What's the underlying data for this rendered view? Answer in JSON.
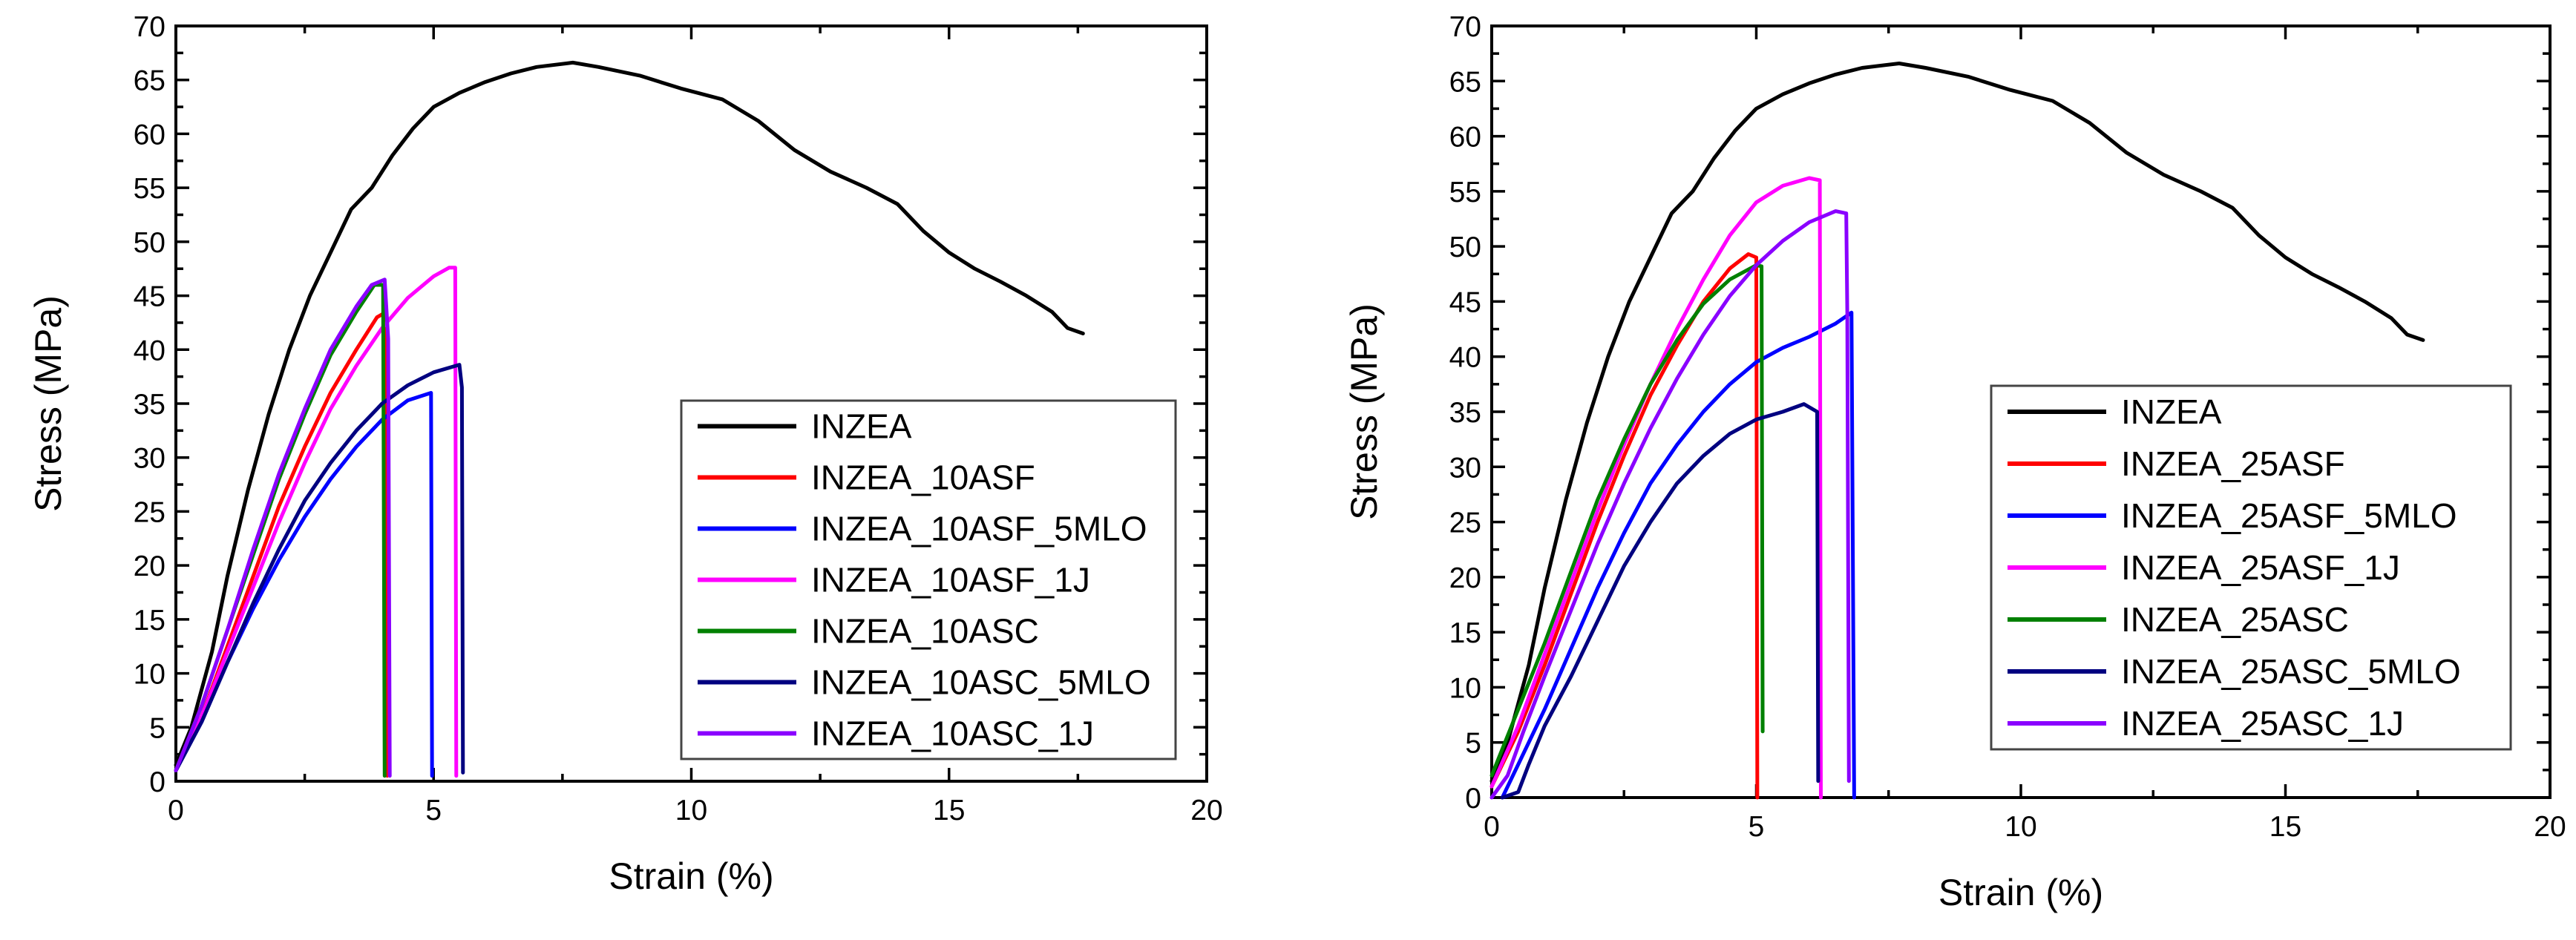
{
  "chart_data": [
    {
      "type": "line",
      "xlabel": "Strain (%)",
      "ylabel": "Stress (MPa)",
      "xlim": [
        0,
        20
      ],
      "ylim": [
        0,
        70
      ],
      "xticks": [
        0,
        5,
        10,
        15,
        20
      ],
      "yticks": [
        0,
        5,
        10,
        15,
        20,
        25,
        30,
        35,
        40,
        45,
        50,
        55,
        60,
        65,
        70
      ],
      "grid": false,
      "legend_position": "lower-right",
      "series": [
        {
          "name": "INZEA",
          "color": "#000000",
          "points": [
            [
              0,
              1.5
            ],
            [
              0.3,
              5
            ],
            [
              0.7,
              12
            ],
            [
              1,
              19
            ],
            [
              1.4,
              27
            ],
            [
              1.8,
              34
            ],
            [
              2.2,
              40
            ],
            [
              2.6,
              45
            ],
            [
              3,
              49
            ],
            [
              3.4,
              53
            ],
            [
              3.8,
              55
            ],
            [
              4.2,
              58
            ],
            [
              4.6,
              60.5
            ],
            [
              5,
              62.5
            ],
            [
              5.5,
              63.8
            ],
            [
              6,
              64.8
            ],
            [
              6.5,
              65.6
            ],
            [
              7,
              66.2
            ],
            [
              7.7,
              66.6
            ],
            [
              8.2,
              66.2
            ],
            [
              9,
              65.4
            ],
            [
              9.8,
              64.2
            ],
            [
              10.6,
              63.2
            ],
            [
              11.3,
              61.2
            ],
            [
              12,
              58.5
            ],
            [
              12.7,
              56.5
            ],
            [
              13.4,
              55
            ],
            [
              14,
              53.5
            ],
            [
              14.5,
              51
            ],
            [
              15,
              49
            ],
            [
              15.5,
              47.5
            ],
            [
              16,
              46.3
            ],
            [
              16.5,
              45
            ],
            [
              17,
              43.5
            ],
            [
              17.3,
              42
            ],
            [
              17.6,
              41.5
            ]
          ]
        },
        {
          "name": "INZEA_10ASF",
          "color": "#ff0000",
          "points": [
            [
              0,
              1
            ],
            [
              0.5,
              6
            ],
            [
              1,
              12.5
            ],
            [
              1.5,
              19
            ],
            [
              2,
              25.5
            ],
            [
              2.5,
              31
            ],
            [
              3,
              36
            ],
            [
              3.5,
              40
            ],
            [
              3.9,
              43
            ],
            [
              4.08,
              43.5
            ],
            [
              4.1,
              0.5
            ]
          ]
        },
        {
          "name": "INZEA_10ASF_5MLO",
          "color": "#0000ff",
          "points": [
            [
              0,
              1
            ],
            [
              0.5,
              5.5
            ],
            [
              1,
              11
            ],
            [
              1.5,
              16
            ],
            [
              2,
              20.5
            ],
            [
              2.5,
              24.5
            ],
            [
              3,
              28
            ],
            [
              3.5,
              31
            ],
            [
              4,
              33.5
            ],
            [
              4.5,
              35.3
            ],
            [
              4.95,
              36
            ],
            [
              4.97,
              0.5
            ]
          ]
        },
        {
          "name": "INZEA_10ASF_1J",
          "color": "#ff00ff",
          "points": [
            [
              0,
              1
            ],
            [
              0.5,
              6
            ],
            [
              1,
              12
            ],
            [
              1.5,
              18
            ],
            [
              2,
              24
            ],
            [
              2.5,
              29.5
            ],
            [
              3,
              34.5
            ],
            [
              3.5,
              38.5
            ],
            [
              4,
              42
            ],
            [
              4.5,
              44.8
            ],
            [
              5,
              46.8
            ],
            [
              5.3,
              47.6
            ],
            [
              5.42,
              47.6
            ],
            [
              5.44,
              0.5
            ]
          ]
        },
        {
          "name": "INZEA_10ASC",
          "color": "#008000",
          "points": [
            [
              0,
              1
            ],
            [
              0.5,
              7
            ],
            [
              1,
              14
            ],
            [
              1.5,
              21
            ],
            [
              2,
              28
            ],
            [
              2.5,
              34
            ],
            [
              3,
              39.5
            ],
            [
              3.5,
              43.5
            ],
            [
              3.85,
              46
            ],
            [
              4.02,
              46
            ],
            [
              4.05,
              0.5
            ]
          ]
        },
        {
          "name": "INZEA_10ASC_5MLO",
          "color": "#000080",
          "points": [
            [
              0,
              1
            ],
            [
              0.5,
              5.5
            ],
            [
              1,
              11
            ],
            [
              1.5,
              16.5
            ],
            [
              2,
              21.5
            ],
            [
              2.5,
              26
            ],
            [
              3,
              29.5
            ],
            [
              3.5,
              32.5
            ],
            [
              4,
              35
            ],
            [
              4.5,
              36.7
            ],
            [
              5,
              37.9
            ],
            [
              5.5,
              38.6
            ],
            [
              5.55,
              36.5
            ],
            [
              5.57,
              0.8
            ]
          ]
        },
        {
          "name": "INZEA_10ASC_1J",
          "color": "#8a00ff",
          "points": [
            [
              0,
              1
            ],
            [
              0.5,
              7
            ],
            [
              1,
              14
            ],
            [
              1.5,
              21.5
            ],
            [
              2,
              28.5
            ],
            [
              2.5,
              34.5
            ],
            [
              3,
              40
            ],
            [
              3.5,
              44
            ],
            [
              3.8,
              46
            ],
            [
              4.05,
              46.5
            ],
            [
              4.12,
              41
            ],
            [
              4.15,
              0.5
            ]
          ]
        }
      ]
    },
    {
      "type": "line",
      "xlabel": "Strain (%)",
      "ylabel": "Stress (MPa)",
      "xlim": [
        0,
        20
      ],
      "ylim": [
        0,
        70
      ],
      "xticks": [
        0,
        5,
        10,
        15,
        20
      ],
      "yticks": [
        0,
        5,
        10,
        15,
        20,
        25,
        30,
        35,
        40,
        45,
        50,
        55,
        60,
        65,
        70
      ],
      "grid": false,
      "legend_position": "lower-right",
      "series": [
        {
          "name": "INZEA",
          "color": "#000000",
          "points": [
            [
              0,
              1.5
            ],
            [
              0.3,
              5
            ],
            [
              0.7,
              12
            ],
            [
              1,
              19
            ],
            [
              1.4,
              27
            ],
            [
              1.8,
              34
            ],
            [
              2.2,
              40
            ],
            [
              2.6,
              45
            ],
            [
              3,
              49
            ],
            [
              3.4,
              53
            ],
            [
              3.8,
              55
            ],
            [
              4.2,
              58
            ],
            [
              4.6,
              60.5
            ],
            [
              5,
              62.5
            ],
            [
              5.5,
              63.8
            ],
            [
              6,
              64.8
            ],
            [
              6.5,
              65.6
            ],
            [
              7,
              66.2
            ],
            [
              7.7,
              66.6
            ],
            [
              8.2,
              66.2
            ],
            [
              9,
              65.4
            ],
            [
              9.8,
              64.2
            ],
            [
              10.6,
              63.2
            ],
            [
              11.3,
              61.2
            ],
            [
              12,
              58.5
            ],
            [
              12.7,
              56.5
            ],
            [
              13.4,
              55
            ],
            [
              14,
              53.5
            ],
            [
              14.5,
              51
            ],
            [
              15,
              49
            ],
            [
              15.5,
              47.5
            ],
            [
              16,
              46.3
            ],
            [
              16.5,
              45
            ],
            [
              17,
              43.5
            ],
            [
              17.3,
              42
            ],
            [
              17.6,
              41.5
            ]
          ]
        },
        {
          "name": "INZEA_25ASF",
          "color": "#ff0000",
          "points": [
            [
              0,
              1
            ],
            [
              0.5,
              6
            ],
            [
              1,
              12
            ],
            [
              1.5,
              18.5
            ],
            [
              2,
              25
            ],
            [
              2.5,
              31
            ],
            [
              3,
              36.5
            ],
            [
              3.5,
              41
            ],
            [
              4,
              45
            ],
            [
              4.5,
              48
            ],
            [
              4.85,
              49.3
            ],
            [
              5,
              49
            ],
            [
              5.02,
              0
            ]
          ]
        },
        {
          "name": "INZEA_25ASF_5MLO",
          "color": "#0000ff",
          "points": [
            [
              0.2,
              0
            ],
            [
              0.5,
              3
            ],
            [
              1,
              8
            ],
            [
              1.5,
              13.5
            ],
            [
              2,
              19
            ],
            [
              2.5,
              24
            ],
            [
              3,
              28.5
            ],
            [
              3.5,
              32
            ],
            [
              4,
              35
            ],
            [
              4.5,
              37.5
            ],
            [
              5,
              39.5
            ],
            [
              5.5,
              40.8
            ],
            [
              6,
              41.8
            ],
            [
              6.5,
              43
            ],
            [
              6.8,
              44
            ],
            [
              6.85,
              0
            ]
          ]
        },
        {
          "name": "INZEA_25ASF_1J",
          "color": "#ff00ff",
          "points": [
            [
              0,
              1
            ],
            [
              0.5,
              6.5
            ],
            [
              1,
              13
            ],
            [
              1.5,
              19.5
            ],
            [
              2,
              26
            ],
            [
              2.5,
              32
            ],
            [
              3,
              37.5
            ],
            [
              3.5,
              42.5
            ],
            [
              4,
              47
            ],
            [
              4.5,
              51
            ],
            [
              5,
              54
            ],
            [
              5.5,
              55.5
            ],
            [
              6,
              56.2
            ],
            [
              6.2,
              56
            ],
            [
              6.22,
              0
            ]
          ]
        },
        {
          "name": "INZEA_25ASC",
          "color": "#008000",
          "points": [
            [
              0,
              2
            ],
            [
              0.5,
              8
            ],
            [
              1,
              14
            ],
            [
              1.5,
              20.5
            ],
            [
              2,
              27
            ],
            [
              2.5,
              32.5
            ],
            [
              3,
              37.5
            ],
            [
              3.5,
              41.5
            ],
            [
              4,
              44.8
            ],
            [
              4.5,
              47
            ],
            [
              5,
              48.3
            ],
            [
              5.1,
              48.2
            ],
            [
              5.12,
              6
            ]
          ]
        },
        {
          "name": "INZEA_25ASC_5MLO",
          "color": "#000080",
          "points": [
            [
              0.2,
              0
            ],
            [
              0.5,
              0.5
            ],
            [
              0.7,
              3
            ],
            [
              1,
              6.5
            ],
            [
              1.5,
              11
            ],
            [
              2,
              16
            ],
            [
              2.5,
              21
            ],
            [
              3,
              25
            ],
            [
              3.5,
              28.5
            ],
            [
              4,
              31
            ],
            [
              4.5,
              33
            ],
            [
              5,
              34.3
            ],
            [
              5.5,
              35
            ],
            [
              5.9,
              35.7
            ],
            [
              6.15,
              35
            ],
            [
              6.17,
              1.5
            ]
          ]
        },
        {
          "name": "INZEA_25ASC_1J",
          "color": "#8a00ff",
          "points": [
            [
              0,
              0
            ],
            [
              0.3,
              2
            ],
            [
              0.6,
              6
            ],
            [
              1,
              11
            ],
            [
              1.5,
              17
            ],
            [
              2,
              23
            ],
            [
              2.5,
              28.5
            ],
            [
              3,
              33.5
            ],
            [
              3.5,
              38
            ],
            [
              4,
              42
            ],
            [
              4.5,
              45.5
            ],
            [
              5,
              48.3
            ],
            [
              5.5,
              50.5
            ],
            [
              6,
              52.2
            ],
            [
              6.5,
              53.2
            ],
            [
              6.7,
              53
            ],
            [
              6.72,
              44
            ],
            [
              6.75,
              1.5
            ]
          ]
        }
      ]
    }
  ]
}
